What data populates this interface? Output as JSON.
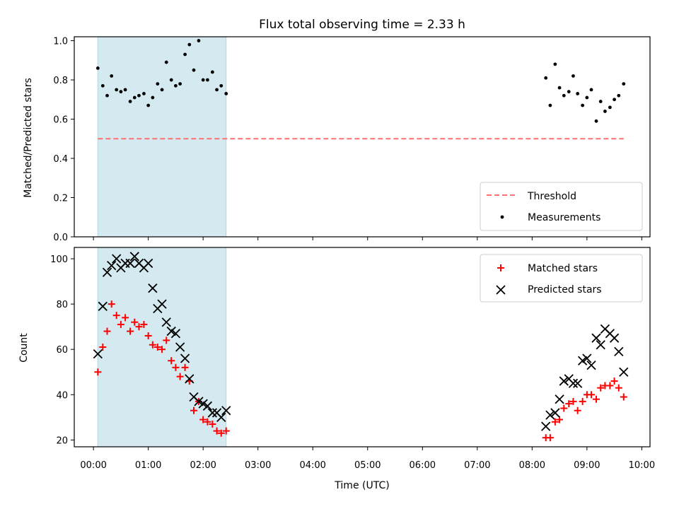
{
  "chart_data": [
    {
      "type": "scatter",
      "title": "Flux total observing time = 2.33 h",
      "ylabel": "Matched/Predicted stars",
      "xlabel": "",
      "xlim": [
        -0.35,
        10.15
      ],
      "ylim": [
        0.0,
        1.02
      ],
      "x_unit": "hours UTC",
      "yticks": [
        "0.0",
        "0.2",
        "0.4",
        "0.6",
        "0.8",
        "1.0"
      ],
      "highlight_span": {
        "start": 0.08,
        "end": 2.42,
        "color": "#d4eaf0"
      },
      "legend": {
        "location": "lower right",
        "entries": [
          "Threshold",
          "Measurements"
        ]
      },
      "series": [
        {
          "name": "Threshold",
          "kind": "dashed-line",
          "color": "#ff7070",
          "x": [
            0.08,
            9.67
          ],
          "y": [
            0.5,
            0.5
          ]
        },
        {
          "name": "Measurements",
          "kind": "dots",
          "color": "#000000",
          "x": [
            0.08,
            0.17,
            0.25,
            0.33,
            0.42,
            0.5,
            0.58,
            0.67,
            0.75,
            0.83,
            0.92,
            1.0,
            1.08,
            1.17,
            1.25,
            1.33,
            1.42,
            1.5,
            1.58,
            1.67,
            1.75,
            1.83,
            1.92,
            2.0,
            2.08,
            2.17,
            2.25,
            2.33,
            2.42,
            8.25,
            8.33,
            8.42,
            8.5,
            8.58,
            8.67,
            8.75,
            8.83,
            8.92,
            9.0,
            9.08,
            9.17,
            9.25,
            9.33,
            9.42,
            9.5,
            9.58,
            9.67
          ],
          "y": [
            0.86,
            0.77,
            0.72,
            0.82,
            0.75,
            0.74,
            0.75,
            0.69,
            0.71,
            0.72,
            0.73,
            0.67,
            0.71,
            0.78,
            0.75,
            0.89,
            0.8,
            0.77,
            0.78,
            0.93,
            0.98,
            0.85,
            1.0,
            0.8,
            0.8,
            0.84,
            0.75,
            0.77,
            0.73,
            0.81,
            0.67,
            0.88,
            0.76,
            0.72,
            0.74,
            0.82,
            0.73,
            0.67,
            0.71,
            0.75,
            0.59,
            0.69,
            0.64,
            0.66,
            0.7,
            0.72,
            0.78
          ]
        }
      ]
    },
    {
      "type": "scatter",
      "title": "",
      "ylabel": "Count",
      "xlabel": "Time (UTC)",
      "xlim": [
        -0.35,
        10.15
      ],
      "ylim": [
        17,
        105
      ],
      "x_unit": "hours UTC",
      "yticks": [
        "20",
        "40",
        "60",
        "80",
        "100"
      ],
      "xticks": [
        "00:00",
        "01:00",
        "02:00",
        "03:00",
        "04:00",
        "05:00",
        "06:00",
        "07:00",
        "08:00",
        "09:00",
        "10:00"
      ],
      "highlight_span": {
        "start": 0.08,
        "end": 2.42,
        "color": "#d4eaf0"
      },
      "legend": {
        "location": "upper right",
        "entries": [
          "Matched stars",
          "Predicted stars"
        ]
      },
      "series": [
        {
          "name": "Matched stars",
          "marker": "plus",
          "color": "#ff0000",
          "x": [
            0.08,
            0.17,
            0.25,
            0.33,
            0.42,
            0.5,
            0.58,
            0.67,
            0.75,
            0.83,
            0.92,
            1.0,
            1.08,
            1.17,
            1.25,
            1.33,
            1.42,
            1.5,
            1.58,
            1.67,
            1.75,
            1.83,
            1.92,
            2.0,
            2.08,
            2.17,
            2.25,
            2.33,
            2.42,
            8.25,
            8.33,
            8.42,
            8.5,
            8.58,
            8.67,
            8.75,
            8.83,
            8.92,
            9.0,
            9.08,
            9.17,
            9.25,
            9.33,
            9.42,
            9.5,
            9.58,
            9.67
          ],
          "y": [
            50,
            61,
            68,
            80,
            75,
            71,
            74,
            68,
            72,
            70,
            71,
            66,
            62,
            61,
            60,
            64,
            55,
            52,
            48,
            52,
            46,
            33,
            37,
            29,
            28,
            27,
            24,
            23,
            24,
            21,
            21,
            28,
            29,
            34,
            36,
            37,
            33,
            37,
            40,
            40,
            38,
            43,
            44,
            44,
            46,
            43,
            39
          ]
        },
        {
          "name": "Predicted stars",
          "marker": "x",
          "color": "#000000",
          "x": [
            0.08,
            0.17,
            0.25,
            0.33,
            0.42,
            0.5,
            0.58,
            0.67,
            0.75,
            0.83,
            0.92,
            1.0,
            1.08,
            1.17,
            1.25,
            1.33,
            1.42,
            1.5,
            1.58,
            1.67,
            1.75,
            1.83,
            1.92,
            2.0,
            2.08,
            2.17,
            2.25,
            2.33,
            2.42,
            8.25,
            8.33,
            8.42,
            8.5,
            8.58,
            8.67,
            8.75,
            8.83,
            8.92,
            9.0,
            9.08,
            9.17,
            9.25,
            9.33,
            9.42,
            9.5,
            9.58,
            9.67
          ],
          "y": [
            58,
            79,
            94,
            97,
            100,
            96,
            98,
            98,
            101,
            98,
            96,
            98,
            87,
            78,
            80,
            72,
            68,
            67,
            61,
            56,
            47,
            39,
            37,
            36,
            35,
            32,
            32,
            30,
            33,
            26,
            31,
            32,
            38,
            46,
            47,
            45,
            45,
            55,
            56,
            53,
            65,
            62,
            69,
            67,
            65,
            59,
            50
          ]
        }
      ]
    }
  ]
}
